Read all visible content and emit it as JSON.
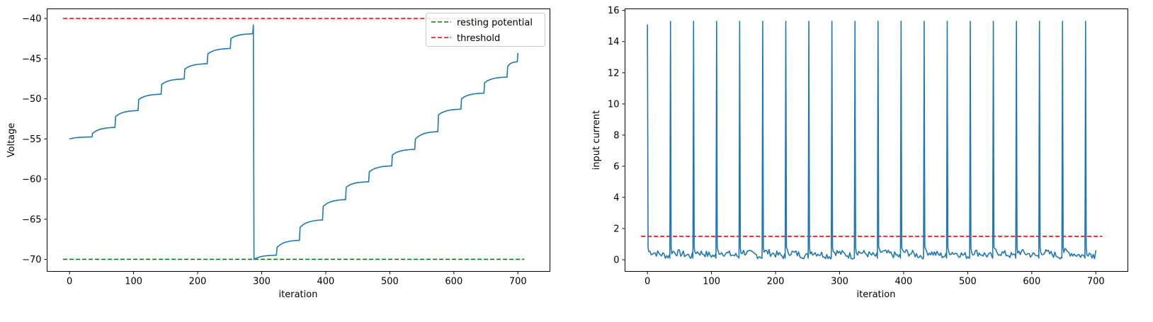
{
  "chart_data": [
    {
      "type": "line",
      "xlabel": "iteration",
      "ylabel": "Voltage",
      "xlim": [
        -35,
        750
      ],
      "ylim": [
        -71.5,
        -38.8
      ],
      "xticks": [
        0,
        100,
        200,
        300,
        400,
        500,
        600,
        700
      ],
      "yticks": [
        -70,
        -65,
        -60,
        -55,
        -50,
        -45,
        -40
      ],
      "xtick_labels": [
        "0",
        "100",
        "200",
        "300",
        "400",
        "500",
        "600",
        "700"
      ],
      "ytick_labels": [
        "−70",
        "−65",
        "−60",
        "−55",
        "−50",
        "−45",
        "−40"
      ],
      "grid": false,
      "legend_position": "top-right",
      "legend": [
        {
          "label": "resting potential",
          "color": "#008000",
          "style": "dashed"
        },
        {
          "label": "threshold",
          "color": "#ff0000",
          "style": "dashed"
        }
      ],
      "hlines": [
        {
          "y": -70,
          "x_range": [
            -10,
            710
          ],
          "color": "#008000",
          "style": "dashed"
        },
        {
          "y": -40,
          "x_range": [
            -10,
            710
          ],
          "color": "#ff0000",
          "style": "dashed"
        }
      ],
      "series": [
        {
          "color": "#1f77b4",
          "kicks": [
            36,
            72,
            108,
            144,
            180,
            216,
            252,
            324,
            360,
            396,
            432,
            468,
            504,
            540,
            576,
            612,
            648,
            684
          ],
          "reset_at": 288,
          "start": -55.0,
          "end_x": 700,
          "points": [
            [
              0,
              -55.0
            ],
            [
              36,
              -54.3
            ],
            [
              72,
              -52.2
            ],
            [
              108,
              -50.1
            ],
            [
              144,
              -48.2
            ],
            [
              180,
              -46.3
            ],
            [
              216,
              -44.4
            ],
            [
              252,
              -42.5
            ],
            [
              287,
              -40.8
            ],
            [
              288,
              -70.0
            ],
            [
              324,
              -68.5
            ],
            [
              360,
              -66.0
            ],
            [
              396,
              -63.4
            ],
            [
              432,
              -61.0
            ],
            [
              468,
              -59.1
            ],
            [
              504,
              -57.0
            ],
            [
              540,
              -55.0
            ],
            [
              576,
              -52.0
            ],
            [
              612,
              -50.0
            ],
            [
              648,
              -48.0
            ],
            [
              684,
              -46.0
            ],
            [
              700,
              -44.3
            ]
          ]
        }
      ]
    },
    {
      "type": "line",
      "xlabel": "iteration",
      "ylabel": "input current",
      "xlim": [
        -35,
        750
      ],
      "ylim": [
        -0.75,
        16.1
      ],
      "xticks": [
        0,
        100,
        200,
        300,
        400,
        500,
        600,
        700
      ],
      "yticks": [
        0,
        2,
        4,
        6,
        8,
        10,
        12,
        14,
        16
      ],
      "xtick_labels": [
        "0",
        "100",
        "200",
        "300",
        "400",
        "500",
        "600",
        "700"
      ],
      "ytick_labels": [
        "0",
        "2",
        "4",
        "6",
        "8",
        "10",
        "12",
        "14",
        "16"
      ],
      "grid": false,
      "hlines": [
        {
          "y": 1.5,
          "x_range": [
            -10,
            710
          ],
          "color": "#ff0000",
          "style": "dashed"
        }
      ],
      "series": [
        {
          "color": "#1f77b4",
          "spikes": [
            {
              "x": 0,
              "y": 15.1
            },
            {
              "x": 36,
              "y": 15.3
            },
            {
              "x": 72,
              "y": 15.3
            },
            {
              "x": 108,
              "y": 15.3
            },
            {
              "x": 144,
              "y": 15.3
            },
            {
              "x": 180,
              "y": 15.3
            },
            {
              "x": 216,
              "y": 15.3
            },
            {
              "x": 252,
              "y": 15.3
            },
            {
              "x": 288,
              "y": 15.3
            },
            {
              "x": 324,
              "y": 15.3
            },
            {
              "x": 360,
              "y": 15.3
            },
            {
              "x": 396,
              "y": 15.3
            },
            {
              "x": 432,
              "y": 15.3
            },
            {
              "x": 468,
              "y": 15.3
            },
            {
              "x": 504,
              "y": 15.3
            },
            {
              "x": 540,
              "y": 15.3
            },
            {
              "x": 576,
              "y": 15.3
            },
            {
              "x": 612,
              "y": 15.3
            },
            {
              "x": 648,
              "y": 15.3
            },
            {
              "x": 684,
              "y": 15.3
            }
          ],
          "baseline_range": [
            0.1,
            0.8
          ],
          "end_x": 700
        }
      ]
    }
  ]
}
